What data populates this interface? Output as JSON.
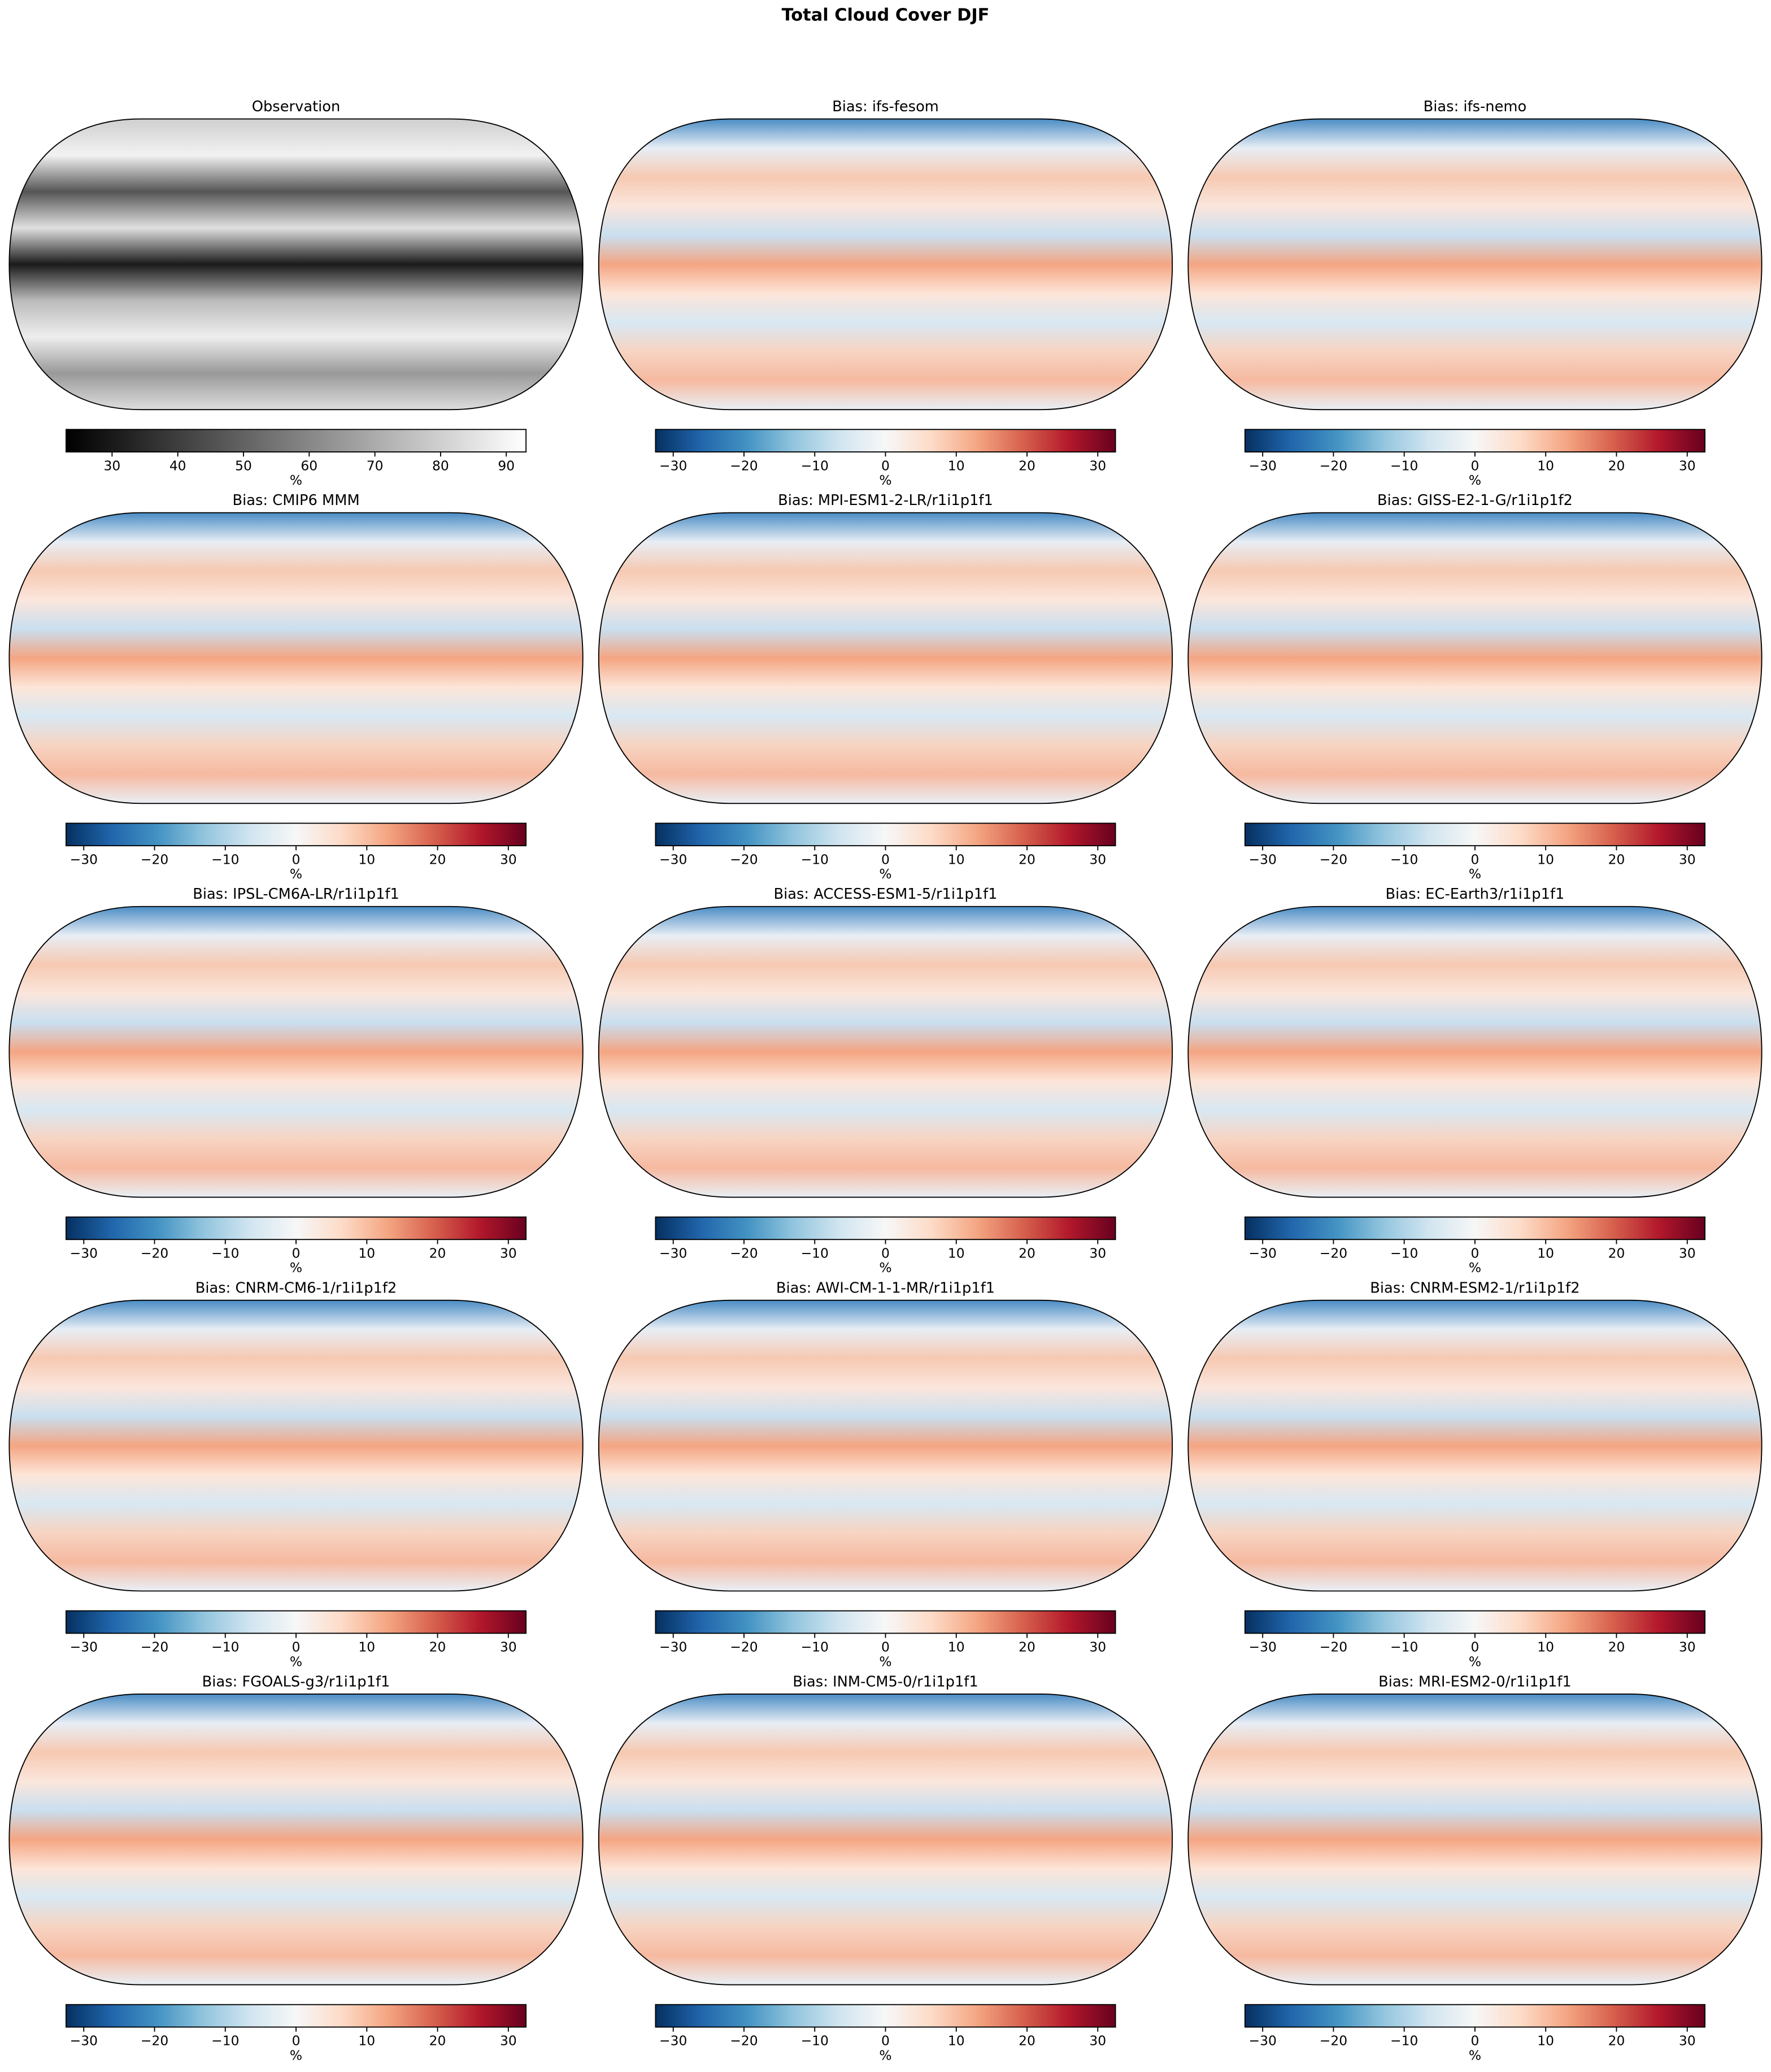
{
  "title": "Total Cloud Cover DJF",
  "chart_data": [
    {
      "type": "map",
      "title": "Observation",
      "colorbar": {
        "label": "%",
        "cmap": "gray",
        "lim": [
          23,
          93
        ],
        "ticks": [
          30,
          40,
          50,
          60,
          70,
          80,
          90
        ]
      }
    },
    {
      "type": "map",
      "title": "Bias: ifs-fesom",
      "colorbar": {
        "label": "%",
        "cmap": "RdBu_r",
        "lim": [
          -32.5,
          32.5
        ],
        "ticks": [
          {
            "value": -30,
            "label": "−30"
          },
          {
            "value": -20,
            "label": "−20"
          },
          {
            "value": -10,
            "label": "−10"
          },
          0,
          10,
          20,
          30
        ]
      }
    },
    {
      "type": "map",
      "title": "Bias: ifs-nemo",
      "colorbar": {
        "label": "%",
        "cmap": "RdBu_r",
        "lim": [
          -32.5,
          32.5
        ],
        "ticks": [
          {
            "value": -30,
            "label": "−30"
          },
          {
            "value": -20,
            "label": "−20"
          },
          {
            "value": -10,
            "label": "−10"
          },
          0,
          10,
          20,
          30
        ]
      }
    },
    {
      "type": "map",
      "title": "Bias: CMIP6 MMM",
      "colorbar": {
        "label": "%",
        "cmap": "RdBu_r",
        "lim": [
          -32.5,
          32.5
        ],
        "ticks": [
          {
            "value": -30,
            "label": "−30"
          },
          {
            "value": -20,
            "label": "−20"
          },
          {
            "value": -10,
            "label": "−10"
          },
          0,
          10,
          20,
          30
        ]
      }
    },
    {
      "type": "map",
      "title": "Bias: MPI-ESM1-2-LR/r1i1p1f1",
      "colorbar": {
        "label": "%",
        "cmap": "RdBu_r",
        "lim": [
          -32.5,
          32.5
        ],
        "ticks": [
          {
            "value": -30,
            "label": "−30"
          },
          {
            "value": -20,
            "label": "−20"
          },
          {
            "value": -10,
            "label": "−10"
          },
          0,
          10,
          20,
          30
        ]
      }
    },
    {
      "type": "map",
      "title": "Bias: GISS-E2-1-G/r1i1p1f2",
      "colorbar": {
        "label": "%",
        "cmap": "RdBu_r",
        "lim": [
          -32.5,
          32.5
        ],
        "ticks": [
          {
            "value": -30,
            "label": "−30"
          },
          {
            "value": -20,
            "label": "−20"
          },
          {
            "value": -10,
            "label": "−10"
          },
          0,
          10,
          20,
          30
        ]
      }
    },
    {
      "type": "map",
      "title": "Bias: IPSL-CM6A-LR/r1i1p1f1",
      "colorbar": {
        "label": "%",
        "cmap": "RdBu_r",
        "lim": [
          -32.5,
          32.5
        ],
        "ticks": [
          {
            "value": -30,
            "label": "−30"
          },
          {
            "value": -20,
            "label": "−20"
          },
          {
            "value": -10,
            "label": "−10"
          },
          0,
          10,
          20,
          30
        ]
      }
    },
    {
      "type": "map",
      "title": "Bias: ACCESS-ESM1-5/r1i1p1f1",
      "colorbar": {
        "label": "%",
        "cmap": "RdBu_r",
        "lim": [
          -32.5,
          32.5
        ],
        "ticks": [
          {
            "value": -30,
            "label": "−30"
          },
          {
            "value": -20,
            "label": "−20"
          },
          {
            "value": -10,
            "label": "−10"
          },
          0,
          10,
          20,
          30
        ]
      }
    },
    {
      "type": "map",
      "title": "Bias: EC-Earth3/r1i1p1f1",
      "colorbar": {
        "label": "%",
        "cmap": "RdBu_r",
        "lim": [
          -32.5,
          32.5
        ],
        "ticks": [
          {
            "value": -30,
            "label": "−30"
          },
          {
            "value": -20,
            "label": "−20"
          },
          {
            "value": -10,
            "label": "−10"
          },
          0,
          10,
          20,
          30
        ]
      }
    },
    {
      "type": "map",
      "title": "Bias: CNRM-CM6-1/r1i1p1f2",
      "colorbar": {
        "label": "%",
        "cmap": "RdBu_r",
        "lim": [
          -32.5,
          32.5
        ],
        "ticks": [
          {
            "value": -30,
            "label": "−30"
          },
          {
            "value": -20,
            "label": "−20"
          },
          {
            "value": -10,
            "label": "−10"
          },
          0,
          10,
          20,
          30
        ]
      }
    },
    {
      "type": "map",
      "title": "Bias: AWI-CM-1-1-MR/r1i1p1f1",
      "colorbar": {
        "label": "%",
        "cmap": "RdBu_r",
        "lim": [
          -32.5,
          32.5
        ],
        "ticks": [
          {
            "value": -30,
            "label": "−30"
          },
          {
            "value": -20,
            "label": "−20"
          },
          {
            "value": -10,
            "label": "−10"
          },
          0,
          10,
          20,
          30
        ]
      }
    },
    {
      "type": "map",
      "title": "Bias: CNRM-ESM2-1/r1i1p1f2",
      "colorbar": {
        "label": "%",
        "cmap": "RdBu_r",
        "lim": [
          -32.5,
          32.5
        ],
        "ticks": [
          {
            "value": -30,
            "label": "−30"
          },
          {
            "value": -20,
            "label": "−20"
          },
          {
            "value": -10,
            "label": "−10"
          },
          0,
          10,
          20,
          30
        ]
      }
    },
    {
      "type": "map",
      "title": "Bias: FGOALS-g3/r1i1p1f1",
      "colorbar": {
        "label": "%",
        "cmap": "RdBu_r",
        "lim": [
          -32.5,
          32.5
        ],
        "ticks": [
          {
            "value": -30,
            "label": "−30"
          },
          {
            "value": -20,
            "label": "−20"
          },
          {
            "value": -10,
            "label": "−10"
          },
          0,
          10,
          20,
          30
        ]
      }
    },
    {
      "type": "map",
      "title": "Bias: INM-CM5-0/r1i1p1f1",
      "colorbar": {
        "label": "%",
        "cmap": "RdBu_r",
        "lim": [
          -32.5,
          32.5
        ],
        "ticks": [
          {
            "value": -30,
            "label": "−30"
          },
          {
            "value": -20,
            "label": "−20"
          },
          {
            "value": -10,
            "label": "−10"
          },
          0,
          10,
          20,
          30
        ]
      }
    },
    {
      "type": "map",
      "title": "Bias: MRI-ESM2-0/r1i1p1f1",
      "colorbar": {
        "label": "%",
        "cmap": "RdBu_r",
        "lim": [
          -32.5,
          32.5
        ],
        "ticks": [
          {
            "value": -30,
            "label": "−30"
          },
          {
            "value": -20,
            "label": "−20"
          },
          {
            "value": -10,
            "label": "−10"
          },
          0,
          10,
          20,
          30
        ]
      }
    }
  ]
}
